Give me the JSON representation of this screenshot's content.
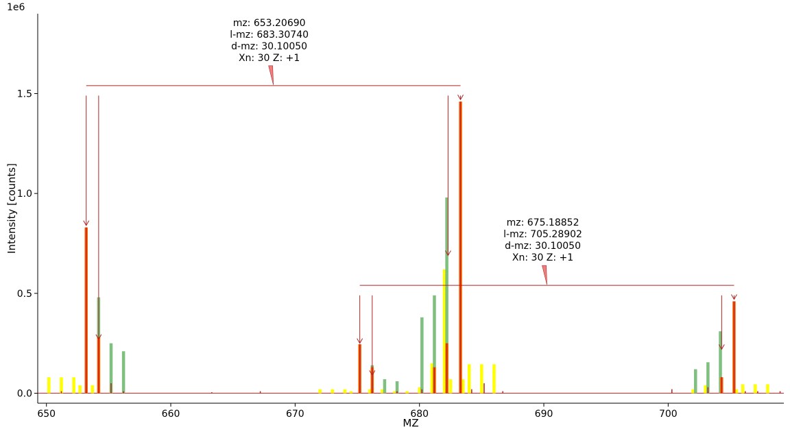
{
  "chart_data": {
    "type": "bar",
    "scale_label": "1e6",
    "xlabel": "MZ",
    "ylabel": "Intensity [counts]",
    "xlim": [
      649.3,
      709.3
    ],
    "ylim": [
      -0.05,
      1.9
    ],
    "x_ticks": [
      650,
      660,
      670,
      680,
      690,
      700
    ],
    "x_tick_labels": [
      "650",
      "660",
      "670",
      "680",
      "690",
      "700"
    ],
    "y_ticks": [
      0.0,
      0.5,
      1.0,
      1.5
    ],
    "y_tick_labels": [
      "0.0",
      "0.5",
      "1.0",
      "1.5"
    ],
    "grid": false,
    "series": [
      {
        "color": "#ffff00",
        "bar_width": 0.25,
        "x": [
          650.2,
          651.2,
          652.2,
          652.7,
          653.7,
          654.2,
          655.2,
          672.0,
          673.0,
          674.0,
          674.5,
          676.0,
          677.0,
          678.0,
          679.0,
          680.0,
          681.0,
          682.0,
          682.5,
          683.5,
          684.0,
          685.0,
          686.0,
          702.0,
          703.0,
          705.5,
          706.0,
          707.0,
          708.0
        ],
        "values": [
          0.08,
          0.08,
          0.08,
          0.04,
          0.04,
          0.29,
          0.05,
          0.02,
          0.02,
          0.02,
          0.01,
          0.02,
          0.02,
          0.01,
          0.01,
          0.03,
          0.15,
          0.62,
          0.07,
          0.07,
          0.145,
          0.145,
          0.145,
          0.02,
          0.04,
          0.02,
          0.045,
          0.045,
          0.045
        ]
      },
      {
        "color": "#7fbf7f",
        "bar_width": 0.25,
        "x": [
          654.2,
          655.2,
          656.2,
          676.2,
          677.2,
          678.2,
          680.2,
          681.2,
          682.2,
          702.2,
          703.2,
          704.2
        ],
        "values": [
          0.48,
          0.25,
          0.21,
          0.14,
          0.07,
          0.06,
          0.38,
          0.49,
          0.98,
          0.12,
          0.155,
          0.31
        ]
      },
      {
        "color": "#ff6600",
        "bar_width": 0.25,
        "x": [
          653.2,
          654.2,
          675.2,
          676.2,
          681.2,
          682.2,
          683.3,
          704.3,
          705.3
        ],
        "values": [
          0.83,
          0.28,
          0.245,
          0.13,
          0.13,
          0.25,
          1.46,
          0.08,
          0.46
        ]
      },
      {
        "color": "#b22222",
        "bar_width": 0.08,
        "x": [
          651.2,
          653.2,
          654.2,
          655.2,
          656.2,
          663.3,
          667.2,
          675.2,
          676.2,
          678.2,
          680.2,
          681.2,
          682.2,
          683.3,
          684.2,
          685.2,
          686.7,
          700.3,
          703.2,
          704.3,
          705.3,
          706.2,
          707.2,
          709.0
        ],
        "values": [
          0.01,
          0.83,
          0.28,
          0.05,
          0.01,
          0.005,
          0.01,
          0.245,
          0.13,
          0.01,
          0.02,
          0.13,
          0.25,
          1.46,
          0.02,
          0.05,
          0.01,
          0.02,
          0.03,
          0.08,
          0.46,
          0.01,
          0.01,
          0.01
        ]
      }
    ],
    "annotations": [
      {
        "lines": [
          "mz: 653.20690",
          "l-mz: 683.30740",
          "d-mz: 30.10050",
          "Xn: 30 Z: +1"
        ],
        "bracket_y": 1.54,
        "start_mz": 653.2,
        "end_mz": 683.3,
        "arrows": [
          {
            "x": 653.2,
            "from": 1.49,
            "to": 0.84
          },
          {
            "x": 654.2,
            "from": 1.49,
            "to": 0.27
          },
          {
            "x": 682.3,
            "from": 1.49,
            "to": 0.69
          },
          {
            "x": 683.3,
            "from": 1.49,
            "to": 1.47
          }
        ]
      },
      {
        "lines": [
          "mz: 675.18852",
          "l-mz: 705.28902",
          "d-mz: 30.10050",
          "Xn: 30 Z: +1"
        ],
        "bracket_y": 0.54,
        "start_mz": 675.2,
        "end_mz": 705.3,
        "arrows": [
          {
            "x": 675.2,
            "from": 0.49,
            "to": 0.25
          },
          {
            "x": 676.2,
            "from": 0.49,
            "to": 0.09
          },
          {
            "x": 704.3,
            "from": 0.49,
            "to": 0.22
          },
          {
            "x": 705.3,
            "from": 0.49,
            "to": 0.47
          }
        ]
      }
    ]
  }
}
